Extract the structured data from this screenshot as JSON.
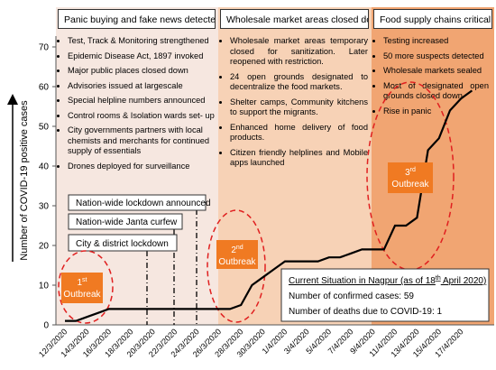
{
  "chart_data": {
    "type": "line",
    "y_label": "Number of  COVID-19 positive cases",
    "categories": [
      "12/3/2020",
      null,
      "14/3/2020",
      null,
      "16/3/2020",
      null,
      "18/3/2020",
      null,
      "20/3/2020",
      null,
      "22/3/2020",
      null,
      "24/3/2020",
      null,
      "26/3/2020",
      null,
      "28/3/2020",
      null,
      "30/3/2020",
      null,
      "1/4/2020",
      null,
      "3/4/2020",
      null,
      "5/4/2020",
      null,
      "7/4/2020",
      null,
      "9/4/2020",
      null,
      "11/4/2020",
      null,
      "13/4/2020",
      null,
      "15/4/2020",
      null,
      "17/4/2020",
      null
    ],
    "series": [
      {
        "color": "#000000",
        "values": [
          1,
          1,
          2,
          3,
          4,
          4,
          4,
          4,
          4,
          4,
          4,
          4,
          4,
          4,
          4,
          4,
          5,
          10,
          12,
          14,
          16,
          16,
          16,
          16,
          17,
          17,
          18,
          19,
          19,
          19,
          25,
          25,
          27,
          44,
          47,
          54,
          57,
          59
        ]
      }
    ],
    "ylim": [
      0,
      70
    ],
    "yticks": [
      0,
      10,
      20,
      30,
      40,
      50,
      60,
      70
    ],
    "grid": false,
    "panels": [
      {
        "title": "Panic buying and fake news detected",
        "items": [
          "Test, Track & Monitoring strengthened",
          "Epidemic Disease Act, 1897 invoked",
          "Major public places closed down",
          "Advisories issued at largescale",
          "Special helpline numbers announced",
          "Control rooms & Isolation wards set- up",
          "City governments partners with local chemists and merchants for continued supply of essentials",
          "Drones deployed for surveillance"
        ]
      },
      {
        "title": "Wholesale market areas closed down",
        "items": [
          "Wholesale market areas temporary closed for sanitization. Later reopened with restriction.",
          "24 open grounds designated to decentralize the food markets.",
          "Shelter camps, Community kitchens to support the migrants.",
          "Enhanced home delivery of food products.",
          "Citizen friendly helplines and Mobile apps launched"
        ]
      },
      {
        "title": "Food supply chains critical",
        "items": [
          "Testing increased",
          "50 more suspects detected",
          "Wholesale markets sealed",
          "Most of designated open grounds closed down",
          "Rise in panic"
        ]
      }
    ],
    "events": [
      "Nation-wide lockdown announced",
      "Nation-wide Janta curfew",
      "City & district lockdown"
    ],
    "outbreaks": [
      {
        "number": "1",
        "suffix": "st",
        "word": "Outbreak"
      },
      {
        "number": "2",
        "suffix": "nd",
        "word": "Outbreak"
      },
      {
        "number": "3",
        "suffix": "rd",
        "word": "Outbreak"
      }
    ],
    "situation": {
      "title_start": "Current Situation in Nagpur (as of 18",
      "title_sup": "th",
      "title_end": " April 2020)",
      "lines": [
        "Number of confirmed cases: 59",
        "Number of deaths due to COVID-19: 1"
      ]
    }
  }
}
